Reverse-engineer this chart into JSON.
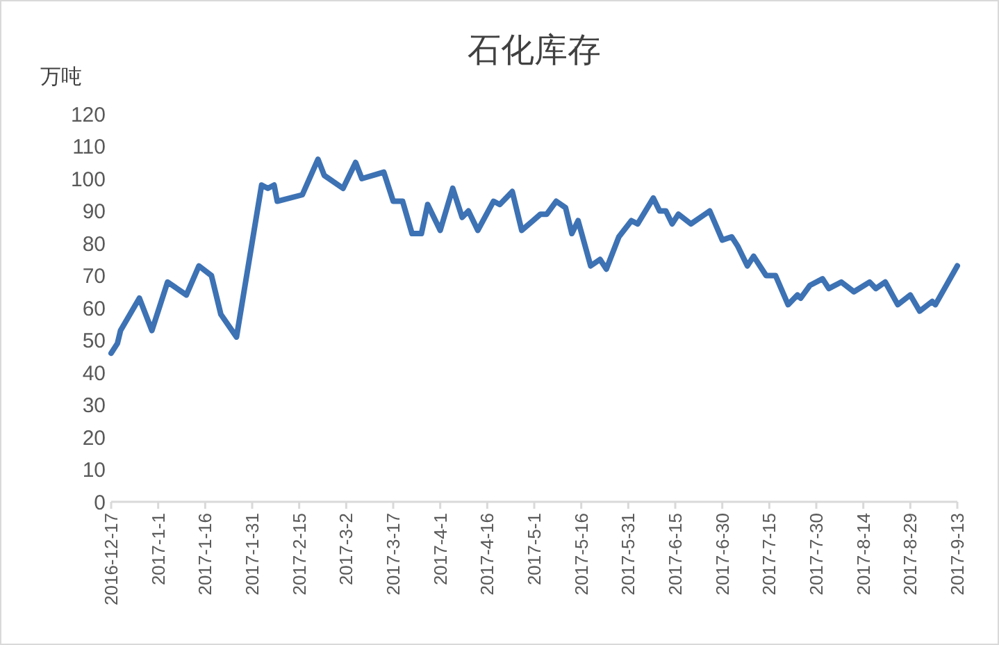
{
  "chart_data": {
    "type": "line",
    "title": "石化库存",
    "ylabel": "万吨",
    "x": [
      "2016-12-17",
      "2016-12-19",
      "2016-12-20",
      "2016-12-26",
      "2016-12-30",
      "2017-01-04",
      "2017-01-10",
      "2017-01-14",
      "2017-01-18",
      "2017-01-21",
      "2017-01-26",
      "2017-02-03",
      "2017-02-05",
      "2017-02-07",
      "2017-02-08",
      "2017-02-16",
      "2017-02-21",
      "2017-02-23",
      "2017-03-01",
      "2017-03-05",
      "2017-03-07",
      "2017-03-14",
      "2017-03-17",
      "2017-03-20",
      "2017-03-23",
      "2017-03-26",
      "2017-03-28",
      "2017-04-01",
      "2017-04-05",
      "2017-04-08",
      "2017-04-10",
      "2017-04-13",
      "2017-04-18",
      "2017-04-20",
      "2017-04-24",
      "2017-04-27",
      "2017-05-03",
      "2017-05-05",
      "2017-05-08",
      "2017-05-11",
      "2017-05-13",
      "2017-05-15",
      "2017-05-19",
      "2017-05-22",
      "2017-05-24",
      "2017-05-28",
      "2017-06-01",
      "2017-06-03",
      "2017-06-08",
      "2017-06-10",
      "2017-06-12",
      "2017-06-14",
      "2017-06-16",
      "2017-06-20",
      "2017-06-26",
      "2017-06-30",
      "2017-07-03",
      "2017-07-05",
      "2017-07-08",
      "2017-07-10",
      "2017-07-14",
      "2017-07-17",
      "2017-07-21",
      "2017-07-24",
      "2017-07-25",
      "2017-07-28",
      "2017-08-01",
      "2017-08-03",
      "2017-08-07",
      "2017-08-11",
      "2017-08-16",
      "2017-08-18",
      "2017-08-21",
      "2017-08-25",
      "2017-08-29",
      "2017-09-01",
      "2017-09-05",
      "2017-09-06",
      "2017-09-13"
    ],
    "series": [
      {
        "color": "#3d72b4",
        "values": [
          46,
          49,
          53,
          63,
          53,
          68,
          64,
          73,
          70,
          58,
          51,
          98,
          97,
          98,
          93,
          95,
          106,
          101,
          97,
          105,
          100,
          102,
          93,
          93,
          83,
          83,
          92,
          84,
          97,
          88,
          90,
          84,
          93,
          92,
          96,
          84,
          89,
          89,
          93,
          91,
          83,
          87,
          73,
          75,
          72,
          82,
          87,
          86,
          94,
          90,
          90,
          86,
          89,
          86,
          90,
          81,
          82,
          79,
          73,
          76,
          70,
          70,
          61,
          64,
          63,
          67,
          69,
          66,
          68,
          65,
          68,
          66,
          68,
          61,
          64,
          59,
          62,
          61,
          73
        ]
      }
    ],
    "xlim": [
      "2016-12-17",
      "2017-09-13"
    ],
    "xticks": [
      {
        "value": "2016-12-17",
        "label": "2016-12-17"
      },
      {
        "value": "2017-01-01",
        "label": "2017-1-1"
      },
      {
        "value": "2017-01-16",
        "label": "2017-1-16"
      },
      {
        "value": "2017-01-31",
        "label": "2017-1-31"
      },
      {
        "value": "2017-02-15",
        "label": "2017-2-15"
      },
      {
        "value": "2017-03-02",
        "label": "2017-3-2"
      },
      {
        "value": "2017-03-17",
        "label": "2017-3-17"
      },
      {
        "value": "2017-04-01",
        "label": "2017-4-1"
      },
      {
        "value": "2017-04-16",
        "label": "2017-4-16"
      },
      {
        "value": "2017-05-01",
        "label": "2017-5-1"
      },
      {
        "value": "2017-05-16",
        "label": "2017-5-16"
      },
      {
        "value": "2017-05-31",
        "label": "2017-5-31"
      },
      {
        "value": "2017-06-15",
        "label": "2017-6-15"
      },
      {
        "value": "2017-06-30",
        "label": "2017-6-30"
      },
      {
        "value": "2017-07-15",
        "label": "2017-7-15"
      },
      {
        "value": "2017-07-30",
        "label": "2017-7-30"
      },
      {
        "value": "2017-08-14",
        "label": "2017-8-14"
      },
      {
        "value": "2017-08-29",
        "label": "2017-8-29"
      },
      {
        "value": "2017-09-13",
        "label": "2017-9-13"
      }
    ],
    "ylim": [
      0,
      120
    ],
    "yticks": [
      0,
      10,
      20,
      30,
      40,
      50,
      60,
      70,
      80,
      90,
      100,
      110,
      120
    ],
    "marker": "none",
    "line_style": "solid"
  }
}
